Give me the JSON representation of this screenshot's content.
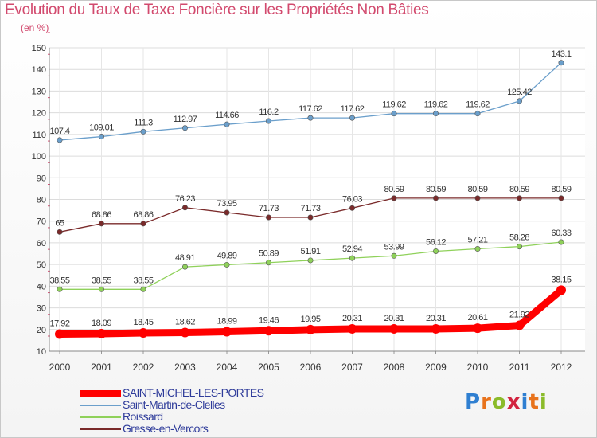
{
  "title": "Evolution du Taux de Taxe Foncière sur les Propriétés Non Bâties",
  "subtitle": "(en %)",
  "logo": {
    "letters": [
      "P",
      "r",
      "o",
      "x",
      "i",
      "t",
      "i"
    ],
    "colors": [
      "#2f7fd1",
      "#e8731c",
      "#8bbb2a",
      "#d2233f",
      "#2f7fd1",
      "#e8731c",
      "#8bbb2a"
    ]
  },
  "chart_data": {
    "type": "line",
    "categories": [
      "2000",
      "2001",
      "2002",
      "2003",
      "2004",
      "2005",
      "2006",
      "2007",
      "2008",
      "2009",
      "2010",
      "2011",
      "2012"
    ],
    "ylim": [
      10,
      150
    ],
    "yticks": [
      "10",
      "20",
      "30",
      "40",
      "50",
      "60",
      "70",
      "80",
      "90",
      "100",
      "110",
      "120",
      "130",
      "140",
      "150"
    ],
    "grid": true,
    "legend_position": "bottom-left",
    "series": [
      {
        "name": "SAINT-MICHEL-LES-PORTES",
        "color": "#ff0000",
        "values": [
          17.92,
          18.09,
          18.45,
          18.62,
          18.99,
          19.46,
          19.95,
          20.31,
          20.31,
          20.31,
          20.61,
          21.92,
          38.15
        ],
        "labels": [
          "17.92",
          "18.09",
          "18.45",
          "18.62",
          "18.99",
          "19.46",
          "19.95",
          "20.31",
          "20.31",
          "20.31",
          "20.61",
          "21.92",
          "38.15"
        ]
      },
      {
        "name": "Saint-Martin-de-Clelles",
        "color": "#6b9fcb",
        "values": [
          107.4,
          109.01,
          111.3,
          112.97,
          114.66,
          116.2,
          117.62,
          117.62,
          119.62,
          119.62,
          119.62,
          125.42,
          143.1
        ],
        "labels": [
          "107.4",
          "109.01",
          "111.3",
          "112.97",
          "114.66",
          "116.2",
          "117.62",
          "117.62",
          "119.62",
          "119.62",
          "119.62",
          "125.42",
          "143.1"
        ]
      },
      {
        "name": "Roissard",
        "color": "#8fd15a",
        "values": [
          38.55,
          38.55,
          38.55,
          48.91,
          49.89,
          50.89,
          51.91,
          52.94,
          53.99,
          56.12,
          57.21,
          58.28,
          60.33
        ],
        "labels": [
          "38.55",
          "38.55",
          "38.55",
          "48.91",
          "49.89",
          "50.89",
          "51.91",
          "52.94",
          "53.99",
          "56.12",
          "57.21",
          "58.28",
          "60.33"
        ]
      },
      {
        "name": "Gresse-en-Vercors",
        "color": "#7a2a2a",
        "values": [
          65,
          68.86,
          68.86,
          76.23,
          73.95,
          71.73,
          71.73,
          76.03,
          80.59,
          80.59,
          80.59,
          80.59,
          80.59
        ],
        "labels": [
          "65",
          "68.86",
          "68.86",
          "76.23",
          "73.95",
          "71.73",
          "71.73",
          "76.03",
          "80.59",
          "80.59",
          "80.59",
          "80.59",
          "80.59"
        ]
      }
    ]
  }
}
